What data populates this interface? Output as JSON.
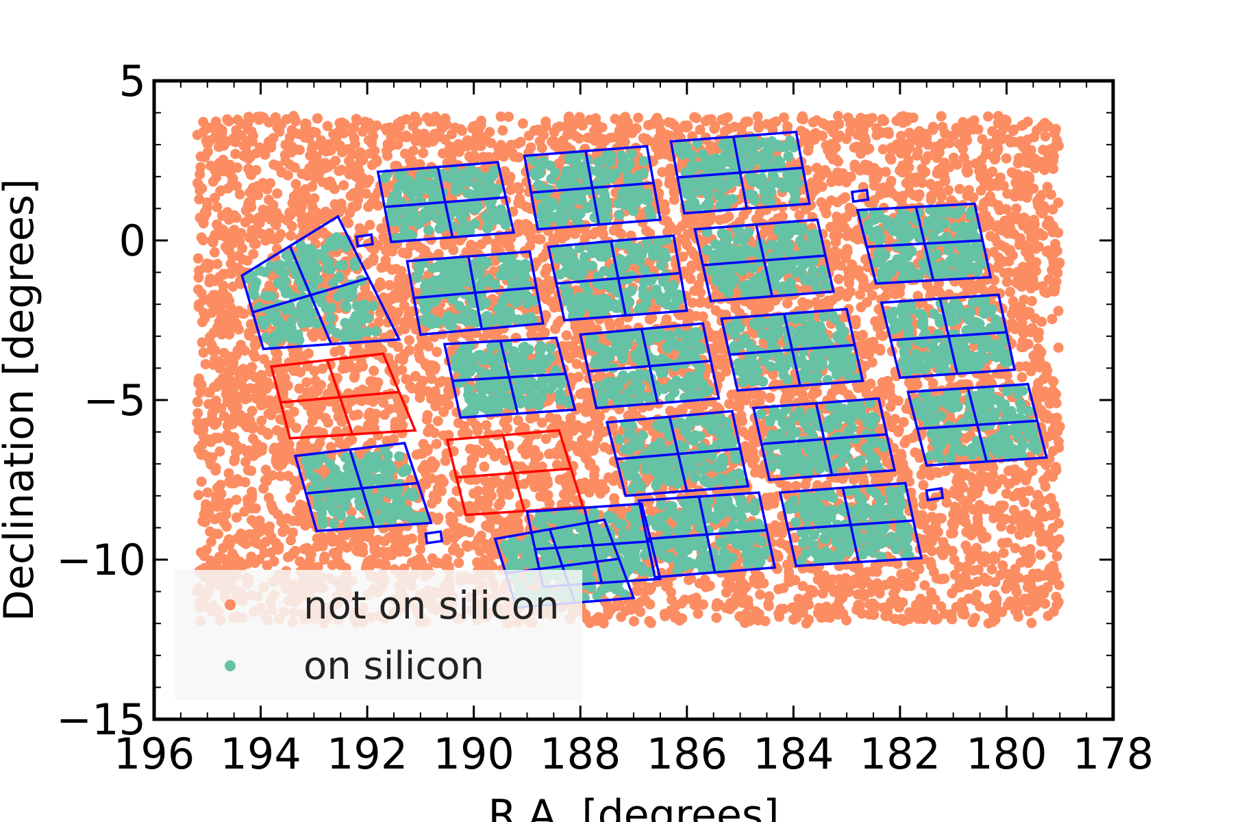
{
  "chart_data": {
    "type": "scatter",
    "xlabel": "R.A. [degrees]",
    "ylabel": "Declination [degrees]",
    "xlim": [
      196,
      178
    ],
    "ylim": [
      -15,
      5
    ],
    "x_ticks": [
      196,
      194,
      192,
      190,
      188,
      186,
      184,
      182,
      180,
      178
    ],
    "y_ticks": [
      5,
      0,
      -5,
      -10,
      -15
    ],
    "x_tick_labels": [
      "196",
      "194",
      "192",
      "190",
      "188",
      "186",
      "184",
      "182",
      "180",
      "178"
    ],
    "y_tick_labels": [
      "5",
      "0",
      "−5",
      "−10",
      "−15"
    ],
    "grid": false,
    "legend": {
      "placement": "lower-left",
      "entries": [
        {
          "label": "not on silicon",
          "color": "#fc8d62"
        },
        {
          "label": "on silicon",
          "color": "#66c2a5"
        }
      ]
    },
    "series": [
      {
        "name": "not on silicon",
        "color": "#fc8d62",
        "region": {
          "ra": [
            179,
            195.2
          ],
          "dec": [
            -12,
            3.9
          ]
        },
        "count": 7000
      },
      {
        "name": "on silicon",
        "color": "#66c2a5"
      }
    ],
    "module_colors": {
      "active": "#0000ff",
      "inactive": "#ff0000"
    },
    "modules": [
      {
        "status": "active",
        "corners": [
          [
            189.55,
            2.45
          ],
          [
            191.8,
            2.15
          ],
          [
            191.55,
            -0.05
          ],
          [
            189.25,
            0.25
          ]
        ]
      },
      {
        "status": "active",
        "corners": [
          [
            186.75,
            2.95
          ],
          [
            189.05,
            2.65
          ],
          [
            188.8,
            0.35
          ],
          [
            186.5,
            0.65
          ]
        ]
      },
      {
        "status": "active",
        "corners": [
          [
            183.95,
            3.4
          ],
          [
            186.3,
            3.1
          ],
          [
            186.05,
            0.85
          ],
          [
            183.7,
            1.15
          ]
        ]
      },
      {
        "status": "active",
        "corners": [
          [
            180.6,
            1.15
          ],
          [
            182.8,
            0.95
          ],
          [
            182.45,
            -1.35
          ],
          [
            180.3,
            -1.15
          ]
        ]
      },
      {
        "status": "active",
        "corners": [
          [
            188.95,
            -0.35
          ],
          [
            191.25,
            -0.65
          ],
          [
            191.0,
            -2.95
          ],
          [
            188.7,
            -2.6
          ]
        ]
      },
      {
        "status": "active",
        "corners": [
          [
            186.25,
            0.15
          ],
          [
            188.6,
            -0.2
          ],
          [
            188.3,
            -2.5
          ],
          [
            186.0,
            -2.2
          ]
        ]
      },
      {
        "status": "active",
        "corners": [
          [
            183.55,
            0.65
          ],
          [
            185.85,
            0.35
          ],
          [
            185.55,
            -1.9
          ],
          [
            183.25,
            -1.6
          ]
        ]
      },
      {
        "status": "active",
        "corners": [
          [
            192.55,
            0.75
          ],
          [
            194.35,
            -1.1
          ],
          [
            193.95,
            -3.4
          ],
          [
            191.4,
            -3.1
          ]
        ]
      },
      {
        "status": "active",
        "corners": [
          [
            188.45,
            -3.05
          ],
          [
            190.55,
            -3.25
          ],
          [
            190.25,
            -5.55
          ],
          [
            188.1,
            -5.3
          ]
        ]
      },
      {
        "status": "active",
        "corners": [
          [
            185.7,
            -2.6
          ],
          [
            188.0,
            -2.95
          ],
          [
            187.7,
            -5.25
          ],
          [
            185.4,
            -4.95
          ]
        ]
      },
      {
        "status": "active",
        "corners": [
          [
            183.0,
            -2.15
          ],
          [
            185.35,
            -2.45
          ],
          [
            185.05,
            -4.7
          ],
          [
            182.7,
            -4.4
          ]
        ]
      },
      {
        "status": "active",
        "corners": [
          [
            180.15,
            -1.7
          ],
          [
            182.35,
            -1.95
          ],
          [
            182.0,
            -4.3
          ],
          [
            179.85,
            -4.05
          ]
        ]
      },
      {
        "status": "inactive",
        "corners": [
          [
            191.7,
            -3.55
          ],
          [
            193.8,
            -3.95
          ],
          [
            193.45,
            -6.2
          ],
          [
            191.1,
            -5.95
          ]
        ]
      },
      {
        "status": "inactive",
        "corners": [
          [
            188.4,
            -5.95
          ],
          [
            190.5,
            -6.25
          ],
          [
            190.15,
            -8.6
          ],
          [
            187.95,
            -8.35
          ]
        ]
      },
      {
        "status": "active",
        "corners": [
          [
            185.15,
            -5.35
          ],
          [
            187.5,
            -5.7
          ],
          [
            187.15,
            -8.0
          ],
          [
            184.85,
            -7.7
          ]
        ]
      },
      {
        "status": "active",
        "corners": [
          [
            182.4,
            -4.95
          ],
          [
            184.75,
            -5.25
          ],
          [
            184.45,
            -7.5
          ],
          [
            182.1,
            -7.2
          ]
        ]
      },
      {
        "status": "active",
        "corners": [
          [
            179.6,
            -4.5
          ],
          [
            181.85,
            -4.75
          ],
          [
            181.5,
            -7.05
          ],
          [
            179.25,
            -6.8
          ]
        ]
      },
      {
        "status": "active",
        "corners": [
          [
            191.3,
            -6.35
          ],
          [
            193.35,
            -6.75
          ],
          [
            192.95,
            -9.1
          ],
          [
            190.8,
            -8.85
          ]
        ]
      },
      {
        "status": "active",
        "corners": [
          [
            186.85,
            -8.25
          ],
          [
            189.0,
            -8.5
          ],
          [
            188.7,
            -10.85
          ],
          [
            186.5,
            -10.6
          ]
        ]
      },
      {
        "status": "active",
        "corners": [
          [
            184.65,
            -7.9
          ],
          [
            186.9,
            -8.15
          ],
          [
            186.6,
            -10.55
          ],
          [
            184.35,
            -10.25
          ]
        ]
      },
      {
        "status": "active",
        "corners": [
          [
            181.9,
            -7.6
          ],
          [
            184.25,
            -7.9
          ],
          [
            183.95,
            -10.2
          ],
          [
            181.6,
            -9.95
          ]
        ]
      },
      {
        "status": "active",
        "corners": [
          [
            187.55,
            -8.75
          ],
          [
            189.6,
            -9.35
          ],
          [
            189.2,
            -11.5
          ],
          [
            187.0,
            -11.2
          ]
        ]
      }
    ],
    "small_markers": [
      {
        "ra": 192.05,
        "dec": 0.0
      },
      {
        "ra": 182.75,
        "dec": 1.4
      },
      {
        "ra": 181.35,
        "dec": -7.95
      },
      {
        "ra": 190.75,
        "dec": -9.3
      }
    ]
  }
}
